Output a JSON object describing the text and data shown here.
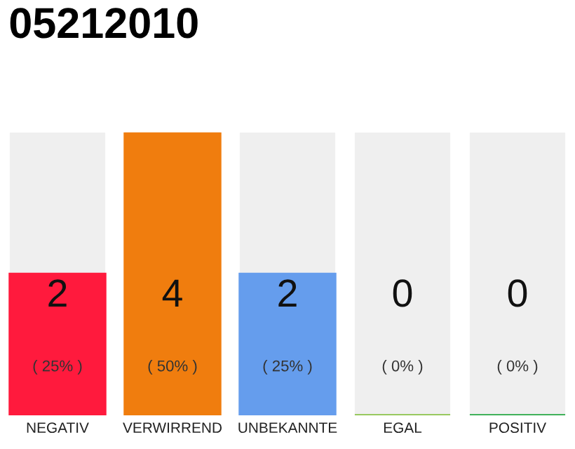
{
  "chart_data": {
    "type": "bar",
    "title": "05212010",
    "categories": [
      "NEGATIV",
      "VERWIRREND",
      "UNBEKANNTE",
      "EGAL",
      "POSITIV"
    ],
    "values": [
      2,
      4,
      2,
      0,
      0
    ],
    "colors": [
      "#ff1a3d",
      "#f07d0e",
      "#659ded",
      "#8bc34a",
      "#27a844"
    ],
    "data_labels": true,
    "annotations": [
      "( 25% )",
      "( 50% )",
      "( 25% )",
      "( 0% )",
      "( 0% )"
    ],
    "grid": false,
    "legend": false
  }
}
